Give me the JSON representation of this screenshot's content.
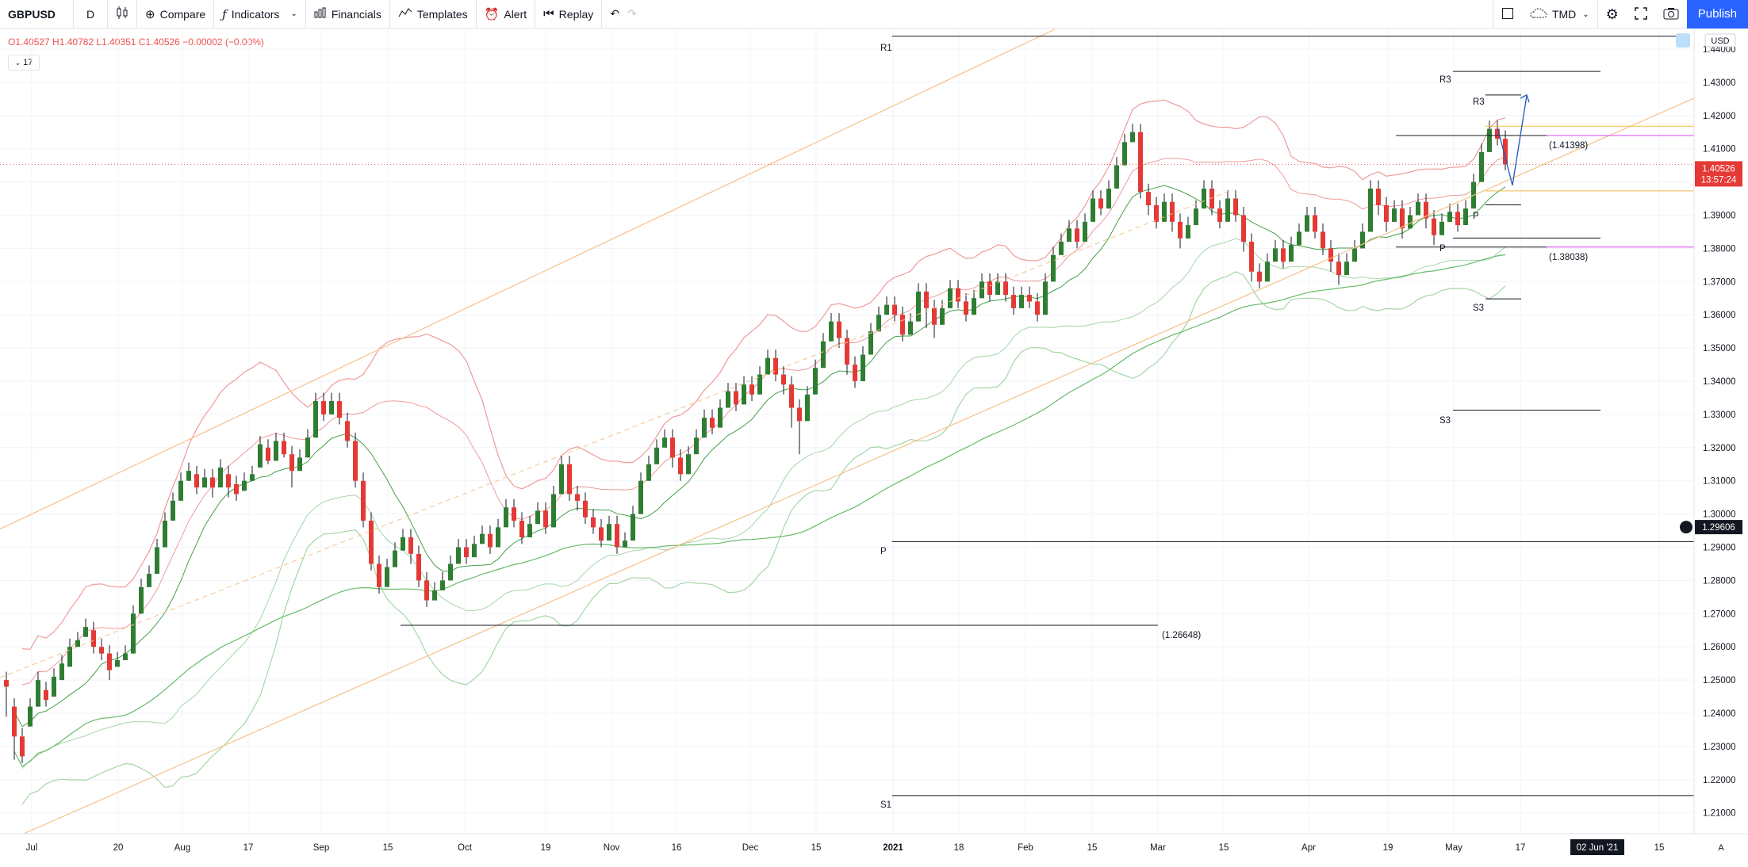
{
  "toolbar": {
    "symbol": "GBPUSD",
    "interval": "D",
    "compare": "Compare",
    "indicators": "Indicators",
    "financials": "Financials",
    "templates": "Templates",
    "alert": "Alert",
    "replay": "Replay",
    "timezone": "TMD",
    "publish": "Publish"
  },
  "legend": {
    "ohlc": "O1.40527  H1.40782  L1.40351  C1.40526  −0.00002 (−0.00%)",
    "collapse": "17"
  },
  "price_axis": {
    "currency": "USD",
    "ticks": [
      "1.44000",
      "1.43000",
      "1.42000",
      "1.41000",
      "1.40000",
      "1.39000",
      "1.38000",
      "1.37000",
      "1.36000",
      "1.35000",
      "1.34000",
      "1.33000",
      "1.32000",
      "1.31000",
      "1.30000",
      "1.29000",
      "1.28000",
      "1.27000",
      "1.26000",
      "1.25000",
      "1.24000",
      "1.23000",
      "1.22000",
      "1.21000"
    ],
    "current_price": "1.40526",
    "countdown": "13:57:24",
    "crosshair_price": "1.29606"
  },
  "time_axis": {
    "ticks": [
      "Jul",
      "20",
      "Aug",
      "17",
      "Sep",
      "15",
      "Oct",
      "19",
      "Nov",
      "16",
      "Dec",
      "15",
      "2021",
      "18",
      "Feb",
      "15",
      "Mar",
      "15",
      "Apr",
      "19",
      "May",
      "17",
      "15"
    ],
    "crosshair_date": "02 Jun '21",
    "auto_label": "A"
  },
  "annotations": {
    "r1": "R1",
    "p": "P",
    "s1": "S1",
    "r3_a": "R3",
    "r3_b": "R3",
    "p_a": "P",
    "p_b": "P",
    "s3_a": "S3",
    "s3_b": "S3",
    "low_level": "(1.26648)",
    "upper_level": "(1.41398)",
    "lower_level": "(1.38038)"
  },
  "colors": {
    "up": "#26a69a",
    "candle_up": "#2e7d32",
    "candle_down": "#e53935",
    "bb_red": "#ef9a9a",
    "bb_green": "#a5d6a7",
    "ma": "#66bb6a",
    "channel": "#f5c28a",
    "pivot": "#131722",
    "magenta": "#e040fb",
    "accent": "#2962ff"
  },
  "chart_data": {
    "type": "candlestick",
    "symbol": "GBPUSD",
    "interval": "D",
    "ylim": [
      1.205,
      1.4455
    ],
    "pivot_levels": {
      "R1": 1.4439,
      "P": 1.2917,
      "S1": 1.2152
    },
    "monthly_pivots": {
      "R3_a": 1.4333,
      "R3_b": 1.4262,
      "P_a": 1.3931,
      "P_b": 1.3831,
      "S3_a": 1.3648,
      "S3_b": 1.3313
    },
    "horizontal_levels": [
      1.26648,
      1.41398,
      1.38038
    ],
    "candles": [
      [
        1.25,
        1.248,
        1.239
      ],
      [
        1.242,
        1.233,
        1.226
      ],
      [
        1.233,
        1.227,
        1.225
      ],
      [
        1.236,
        1.242,
        1.246
      ],
      [
        1.242,
        1.25,
        1.251
      ],
      [
        1.247,
        1.244,
        1.242
      ],
      [
        1.245,
        1.251,
        1.254
      ],
      [
        1.25,
        1.255,
        1.256
      ],
      [
        1.254,
        1.26,
        1.264
      ],
      [
        1.26,
        1.262,
        1.265
      ],
      [
        1.263,
        1.266,
        1.268
      ],
      [
        1.265,
        1.26,
        1.258
      ],
      [
        1.26,
        1.258,
        1.256
      ],
      [
        1.258,
        1.253,
        1.25
      ],
      [
        1.254,
        1.256,
        1.26
      ],
      [
        1.256,
        1.258,
        1.261
      ],
      [
        1.258,
        1.27,
        1.274
      ],
      [
        1.27,
        1.278,
        1.28
      ],
      [
        1.278,
        1.282,
        1.285
      ],
      [
        1.282,
        1.29,
        1.295
      ],
      [
        1.29,
        1.298,
        1.3
      ],
      [
        1.298,
        1.304,
        1.307
      ],
      [
        1.304,
        1.31,
        1.312
      ],
      [
        1.31,
        1.313,
        1.318
      ],
      [
        1.312,
        1.308,
        1.306
      ],
      [
        1.308,
        1.311,
        1.314
      ],
      [
        1.311,
        1.308,
        1.305
      ],
      [
        1.308,
        1.314,
        1.317
      ],
      [
        1.312,
        1.308,
        1.305
      ],
      [
        1.309,
        1.306,
        1.304
      ],
      [
        1.307,
        1.31,
        1.313
      ],
      [
        1.31,
        1.312,
        1.314
      ],
      [
        1.314,
        1.321,
        1.324
      ],
      [
        1.32,
        1.316,
        1.315
      ],
      [
        1.316,
        1.322,
        1.325
      ],
      [
        1.322,
        1.318,
        1.317
      ],
      [
        1.318,
        1.313,
        1.308
      ],
      [
        1.313,
        1.317,
        1.32
      ],
      [
        1.317,
        1.323,
        1.326
      ],
      [
        1.323,
        1.334,
        1.338
      ],
      [
        1.334,
        1.33,
        1.328
      ],
      [
        1.33,
        1.334,
        1.339
      ],
      [
        1.334,
        1.329,
        1.327
      ],
      [
        1.328,
        1.322,
        1.32
      ],
      [
        1.322,
        1.31,
        1.308
      ],
      [
        1.31,
        1.298,
        1.296
      ],
      [
        1.298,
        1.285,
        1.283
      ],
      [
        1.285,
        1.278,
        1.276
      ],
      [
        1.278,
        1.284,
        1.286
      ],
      [
        1.284,
        1.289,
        1.292
      ],
      [
        1.289,
        1.293,
        1.296
      ],
      [
        1.293,
        1.288,
        1.285
      ],
      [
        1.288,
        1.28,
        1.278
      ],
      [
        1.28,
        1.274,
        1.272
      ],
      [
        1.274,
        1.277,
        1.279
      ],
      [
        1.277,
        1.28,
        1.283
      ],
      [
        1.28,
        1.285,
        1.288
      ],
      [
        1.285,
        1.29,
        1.292
      ],
      [
        1.29,
        1.287,
        1.285
      ],
      [
        1.287,
        1.291,
        1.295
      ],
      [
        1.291,
        1.294,
        1.297
      ],
      [
        1.294,
        1.29,
        1.288
      ],
      [
        1.29,
        1.296,
        1.299
      ],
      [
        1.296,
        1.302,
        1.304
      ],
      [
        1.302,
        1.298,
        1.296
      ],
      [
        1.298,
        1.293,
        1.291
      ],
      [
        1.293,
        1.297,
        1.299
      ],
      [
        1.297,
        1.301,
        1.304
      ],
      [
        1.301,
        1.296,
        1.294
      ],
      [
        1.296,
        1.306,
        1.308
      ],
      [
        1.306,
        1.315,
        1.317
      ],
      [
        1.315,
        1.306,
        1.304
      ],
      [
        1.306,
        1.304,
        1.301
      ],
      [
        1.304,
        1.299,
        1.297
      ],
      [
        1.299,
        1.296,
        1.294
      ],
      [
        1.296,
        1.292,
        1.29
      ],
      [
        1.292,
        1.297,
        1.301
      ],
      [
        1.297,
        1.29,
        1.288
      ],
      [
        1.29,
        1.292,
        1.296
      ],
      [
        1.292,
        1.3,
        1.304
      ],
      [
        1.3,
        1.31,
        1.314
      ],
      [
        1.31,
        1.315,
        1.318
      ],
      [
        1.315,
        1.32,
        1.323
      ],
      [
        1.32,
        1.323,
        1.327
      ],
      [
        1.323,
        1.317,
        1.314
      ],
      [
        1.317,
        1.312,
        1.31
      ],
      [
        1.312,
        1.318,
        1.321
      ],
      [
        1.318,
        1.323,
        1.326
      ],
      [
        1.323,
        1.329,
        1.332
      ],
      [
        1.329,
        1.326,
        1.324
      ],
      [
        1.326,
        1.332,
        1.335
      ],
      [
        1.332,
        1.337,
        1.34
      ],
      [
        1.337,
        1.333,
        1.331
      ],
      [
        1.333,
        1.339,
        1.342
      ],
      [
        1.339,
        1.336,
        1.334
      ],
      [
        1.336,
        1.342,
        1.345
      ],
      [
        1.342,
        1.347,
        1.35
      ],
      [
        1.347,
        1.342,
        1.34
      ],
      [
        1.342,
        1.339,
        1.336
      ],
      [
        1.339,
        1.332,
        1.326
      ],
      [
        1.332,
        1.328,
        1.318
      ],
      [
        1.328,
        1.336,
        1.34
      ],
      [
        1.336,
        1.344,
        1.347
      ],
      [
        1.344,
        1.352,
        1.356
      ],
      [
        1.352,
        1.358,
        1.362
      ],
      [
        1.358,
        1.353,
        1.35
      ],
      [
        1.353,
        1.345,
        1.342
      ],
      [
        1.345,
        1.34,
        1.338
      ],
      [
        1.34,
        1.348,
        1.352
      ],
      [
        1.348,
        1.355,
        1.358
      ],
      [
        1.355,
        1.36,
        1.362
      ],
      [
        1.36,
        1.363,
        1.366
      ],
      [
        1.363,
        1.36,
        1.358
      ],
      [
        1.36,
        1.354,
        1.352
      ],
      [
        1.354,
        1.358,
        1.361
      ],
      [
        1.358,
        1.367,
        1.37
      ],
      [
        1.367,
        1.362,
        1.356
      ],
      [
        1.362,
        1.357,
        1.353
      ],
      [
        1.357,
        1.362,
        1.364
      ],
      [
        1.362,
        1.368,
        1.37
      ],
      [
        1.368,
        1.364,
        1.362
      ],
      [
        1.364,
        1.36,
        1.358
      ],
      [
        1.36,
        1.365,
        1.368
      ],
      [
        1.365,
        1.37,
        1.373
      ],
      [
        1.37,
        1.366,
        1.364
      ],
      [
        1.366,
        1.37,
        1.373
      ],
      [
        1.37,
        1.366,
        1.364
      ],
      [
        1.366,
        1.362,
        1.36
      ],
      [
        1.362,
        1.366,
        1.369
      ],
      [
        1.366,
        1.364,
        1.362
      ],
      [
        1.364,
        1.36,
        1.358
      ],
      [
        1.36,
        1.37,
        1.373
      ],
      [
        1.37,
        1.378,
        1.381
      ],
      [
        1.378,
        1.382,
        1.385
      ],
      [
        1.382,
        1.386,
        1.388
      ],
      [
        1.386,
        1.382,
        1.38
      ],
      [
        1.382,
        1.388,
        1.391
      ],
      [
        1.388,
        1.395,
        1.398
      ],
      [
        1.395,
        1.392,
        1.39
      ],
      [
        1.392,
        1.398,
        1.401
      ],
      [
        1.398,
        1.405,
        1.408
      ],
      [
        1.405,
        1.412,
        1.415
      ],
      [
        1.412,
        1.415,
        1.424
      ],
      [
        1.415,
        1.397,
        1.395
      ],
      [
        1.397,
        1.393,
        1.39
      ],
      [
        1.393,
        1.388,
        1.386
      ],
      [
        1.388,
        1.394,
        1.397
      ],
      [
        1.394,
        1.388,
        1.385
      ],
      [
        1.388,
        1.383,
        1.38
      ],
      [
        1.383,
        1.387,
        1.39
      ],
      [
        1.387,
        1.392,
        1.395
      ],
      [
        1.392,
        1.398,
        1.4
      ],
      [
        1.398,
        1.392,
        1.39
      ],
      [
        1.392,
        1.388,
        1.386
      ],
      [
        1.388,
        1.395,
        1.398
      ],
      [
        1.395,
        1.39,
        1.388
      ],
      [
        1.39,
        1.382,
        1.379
      ],
      [
        1.382,
        1.373,
        1.37
      ],
      [
        1.373,
        1.37,
        1.368
      ],
      [
        1.37,
        1.376,
        1.379
      ],
      [
        1.376,
        1.38,
        1.383
      ],
      [
        1.38,
        1.376,
        1.374
      ],
      [
        1.376,
        1.381,
        1.384
      ],
      [
        1.381,
        1.385,
        1.387
      ],
      [
        1.385,
        1.39,
        1.393
      ],
      [
        1.39,
        1.385,
        1.383
      ],
      [
        1.385,
        1.38,
        1.378
      ],
      [
        1.38,
        1.376,
        1.373
      ],
      [
        1.376,
        1.372,
        1.369
      ],
      [
        1.372,
        1.376,
        1.379
      ],
      [
        1.376,
        1.38,
        1.383
      ],
      [
        1.38,
        1.385,
        1.388
      ],
      [
        1.385,
        1.398,
        1.4
      ],
      [
        1.398,
        1.393,
        1.39
      ],
      [
        1.393,
        1.388,
        1.385
      ],
      [
        1.388,
        1.392,
        1.395
      ],
      [
        1.392,
        1.386,
        1.383
      ],
      [
        1.386,
        1.39,
        1.393
      ],
      [
        1.39,
        1.394,
        1.397
      ],
      [
        1.394,
        1.389,
        1.386
      ],
      [
        1.389,
        1.384,
        1.381
      ],
      [
        1.384,
        1.388,
        1.391
      ],
      [
        1.388,
        1.391,
        1.393
      ],
      [
        1.391,
        1.387,
        1.385
      ],
      [
        1.387,
        1.392,
        1.395
      ],
      [
        1.392,
        1.4,
        1.403
      ],
      [
        1.4,
        1.409,
        1.412
      ],
      [
        1.409,
        1.416,
        1.418
      ],
      [
        1.416,
        1.413,
        1.411
      ],
      [
        1.413,
        1.4053,
        1.4035
      ]
    ]
  }
}
